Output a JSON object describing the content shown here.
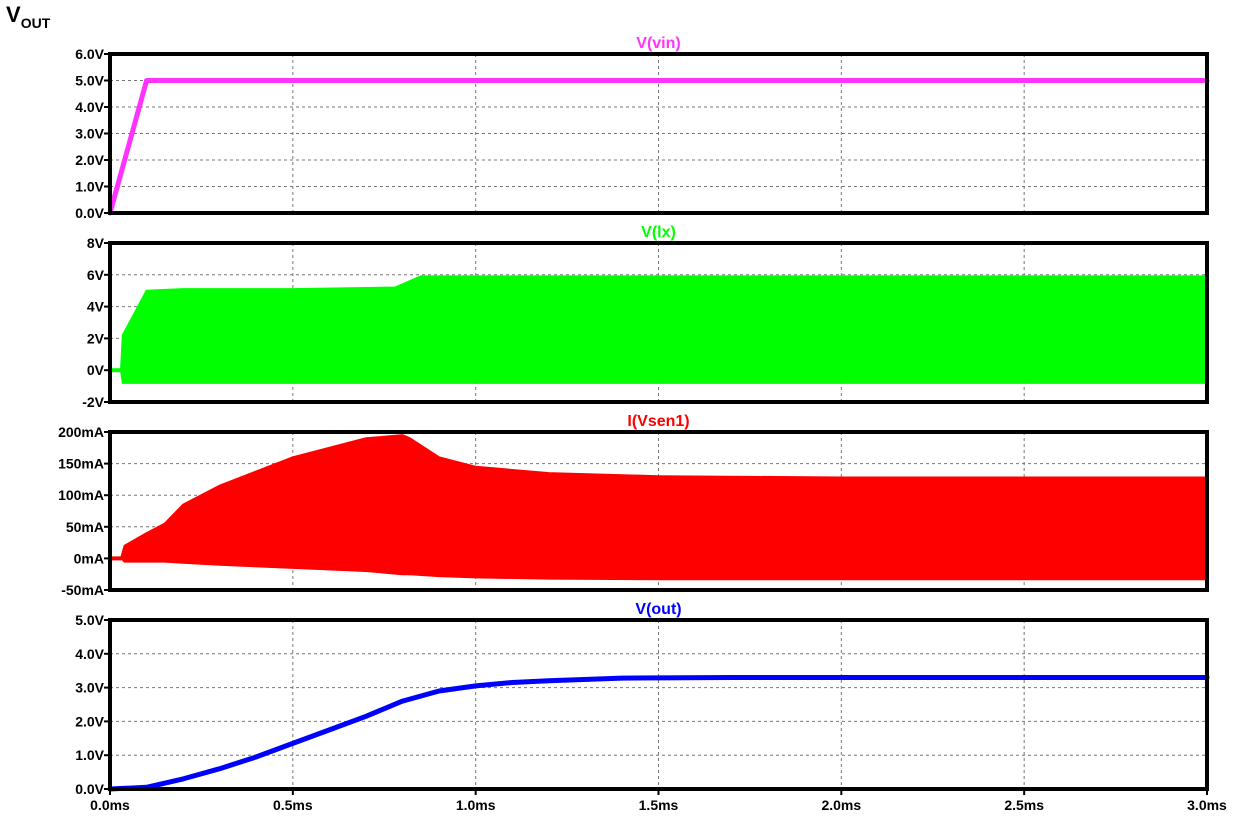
{
  "figure_title": {
    "main": "V",
    "sub": "OUT"
  },
  "chart_data": {
    "type": "line",
    "grid": true,
    "x_ticks": [
      "0.0ms",
      "0.5ms",
      "1.0ms",
      "1.5ms",
      "2.0ms",
      "2.5ms",
      "3.0ms"
    ],
    "xlim": [
      0,
      3.0
    ],
    "panels": [
      {
        "title": "V(vin)",
        "color": "#ff33ff",
        "ylim": [
          0,
          6
        ],
        "y_ticks": [
          "6.0V",
          "5.0V",
          "4.0V",
          "3.0V",
          "2.0V",
          "1.0V",
          "0.0V"
        ],
        "series": [
          {
            "x": [
              0,
              0.1,
              3.0
            ],
            "y": [
              0,
              5.0,
              5.0
            ]
          }
        ]
      },
      {
        "title": "V(lx)",
        "color": "#00ff00",
        "ylim": [
          -2,
          8
        ],
        "y_ticks": [
          "8V",
          "6V",
          "4V",
          "2V",
          "0V",
          "-2V"
        ],
        "band": {
          "x": [
            0,
            0.03,
            0.035,
            0.1,
            0.2,
            0.5,
            0.78,
            0.85,
            3.0
          ],
          "upper": [
            0,
            0,
            2.2,
            5.0,
            5.1,
            5.1,
            5.2,
            5.9,
            5.9
          ],
          "lower": [
            0,
            0,
            -0.8,
            -0.8,
            -0.8,
            -0.8,
            -0.8,
            -0.8,
            -0.8
          ]
        }
      },
      {
        "title": "I(Vsen1)",
        "color": "#ff0000",
        "ylim": [
          -50,
          200
        ],
        "y_ticks": [
          "200mA",
          "150mA",
          "100mA",
          "50mA",
          "0mA",
          "-50mA"
        ],
        "band": {
          "x": [
            0,
            0.03,
            0.04,
            0.1,
            0.15,
            0.2,
            0.3,
            0.5,
            0.7,
            0.8,
            0.82,
            0.9,
            1.0,
            1.2,
            1.5,
            2.0,
            3.0
          ],
          "upper": [
            0,
            0,
            20,
            40,
            55,
            85,
            115,
            160,
            190,
            195,
            190,
            160,
            145,
            135,
            130,
            128,
            128
          ],
          "lower": [
            0,
            0,
            -5,
            -5,
            -5,
            -7,
            -10,
            -15,
            -20,
            -25,
            -25,
            -28,
            -30,
            -32,
            -33,
            -33,
            -33
          ]
        }
      },
      {
        "title": "V(out)",
        "color": "#0000ff",
        "ylim": [
          0,
          5
        ],
        "y_ticks": [
          "5.0V",
          "4.0V",
          "3.0V",
          "2.0V",
          "1.0V",
          "0.0V"
        ],
        "series": [
          {
            "x": [
              0,
              0.1,
              0.2,
              0.3,
              0.4,
              0.5,
              0.6,
              0.7,
              0.8,
              0.9,
              1.0,
              1.1,
              1.2,
              1.4,
              1.7,
              2.0,
              3.0
            ],
            "y": [
              0,
              0.05,
              0.3,
              0.6,
              0.95,
              1.35,
              1.75,
              2.15,
              2.6,
              2.9,
              3.05,
              3.15,
              3.2,
              3.28,
              3.3,
              3.3,
              3.3
            ]
          }
        ]
      }
    ]
  }
}
